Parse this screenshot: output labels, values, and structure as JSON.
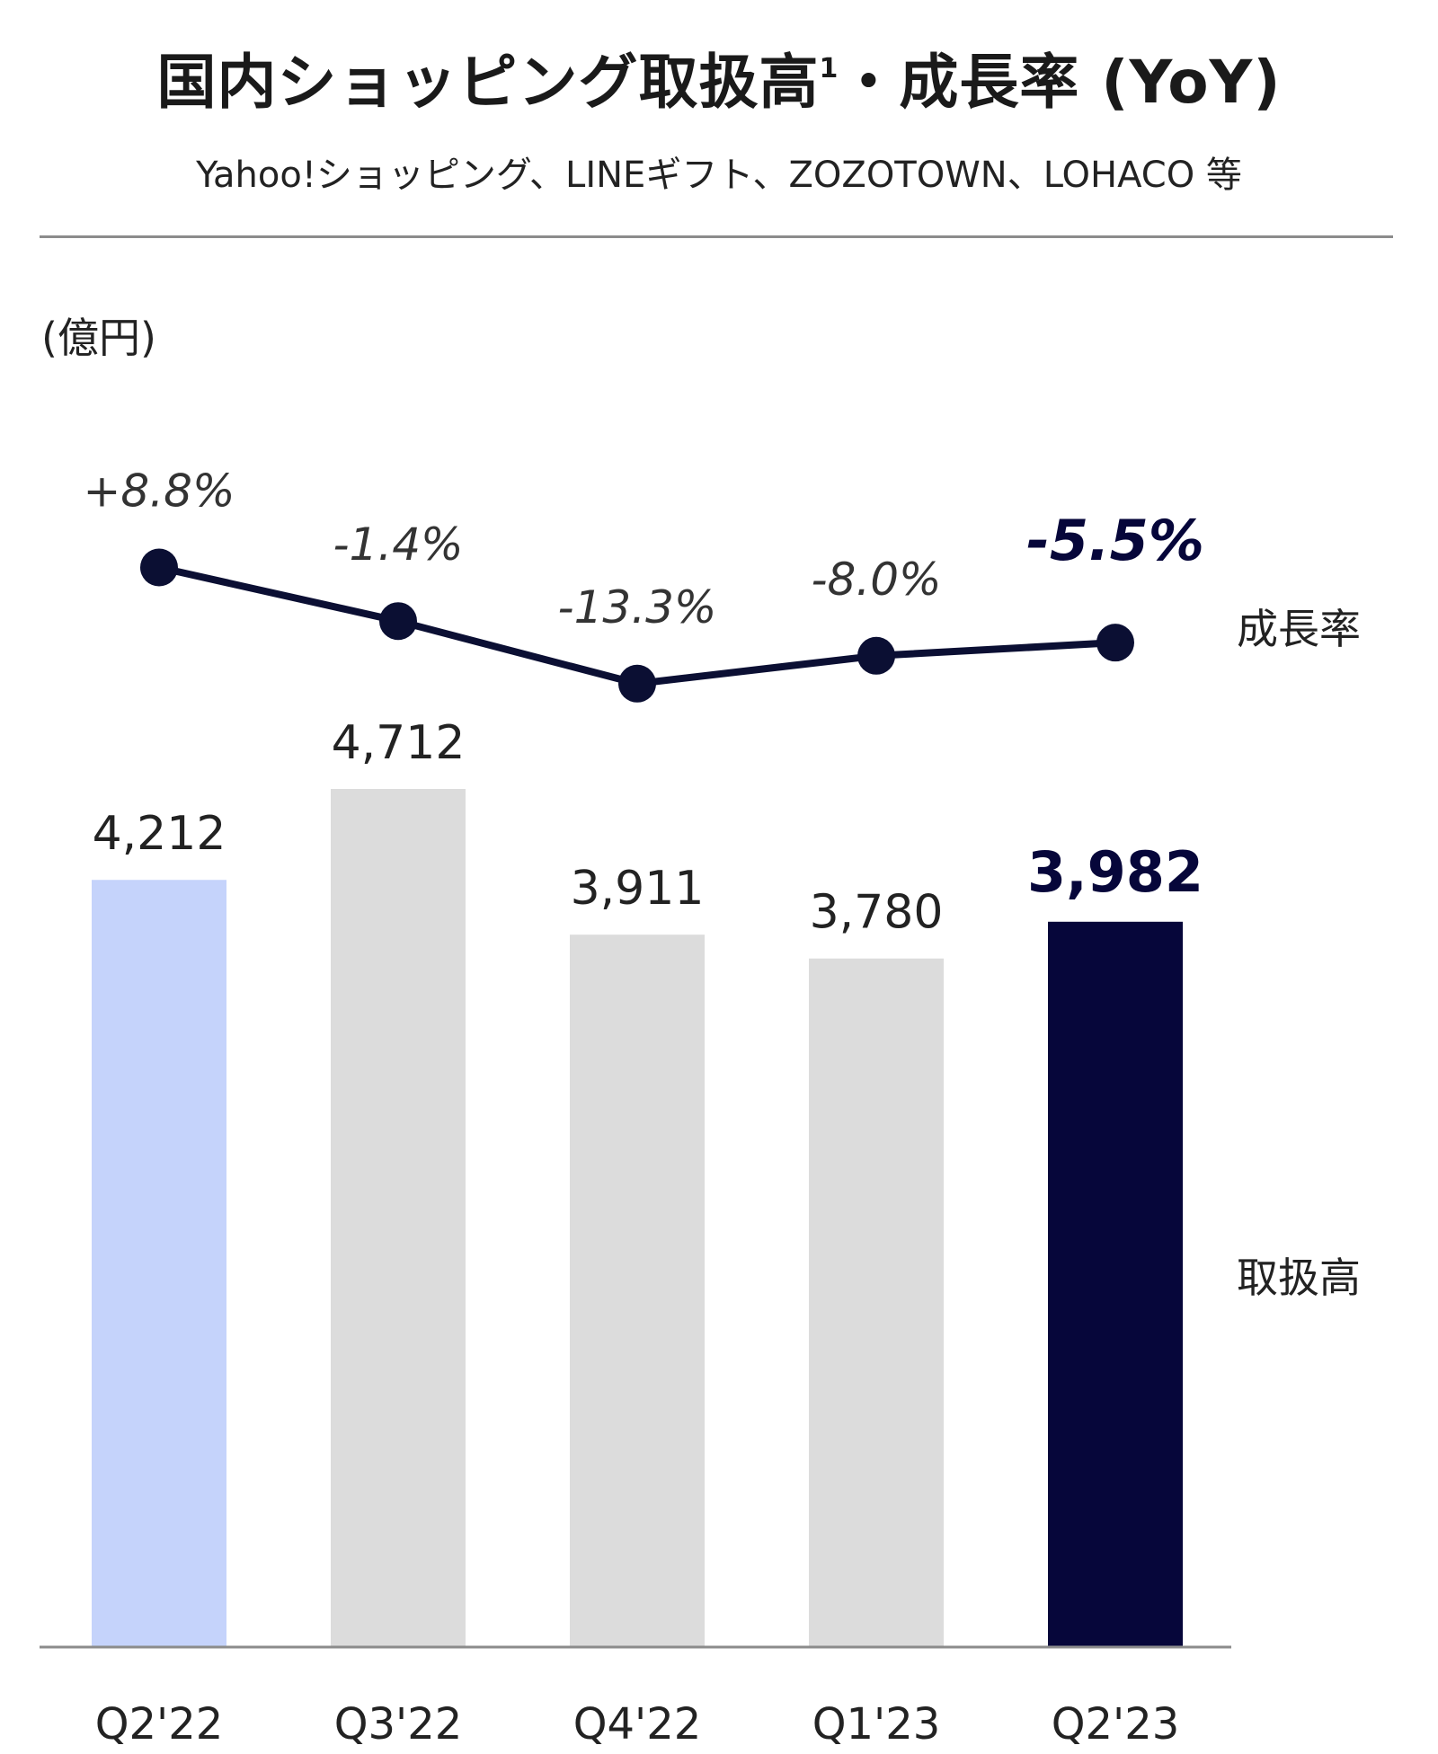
{
  "header": {
    "title": "国内ショッピング取扱高",
    "title_sup": "1",
    "title_suffix": "・成長率 (YoY)",
    "subtitle": "Yahoo!ショッピング、LINEギフト、ZOZOTOWN、LOHACO 等"
  },
  "chart_data": {
    "type": "bar",
    "unit_label": "(億円)",
    "categories": [
      "Q2'22",
      "Q3'22",
      "Q4'22",
      "Q1'23",
      "Q2'23"
    ],
    "series": [
      {
        "name": "取扱高",
        "type": "bar",
        "values": [
          4212,
          4712,
          3911,
          3780,
          3982
        ],
        "labels": [
          "4,212",
          "4,712",
          "3,911",
          "3,780",
          "3,982"
        ]
      },
      {
        "name": "成長率",
        "type": "line",
        "values": [
          8.8,
          -1.4,
          -13.3,
          -8.0,
          -5.5
        ],
        "labels": [
          "+8.8%",
          "-1.4%",
          "-13.3%",
          "-8.0%",
          "-5.5%"
        ]
      }
    ],
    "bar_colors": [
      "#c5d3fb",
      "#dcdcdc",
      "#dcdcdc",
      "#dcdcdc",
      "#06063a"
    ],
    "line_color": "#0b0f33",
    "highlight_index": 4,
    "label_color_highlight": "#06063a"
  }
}
